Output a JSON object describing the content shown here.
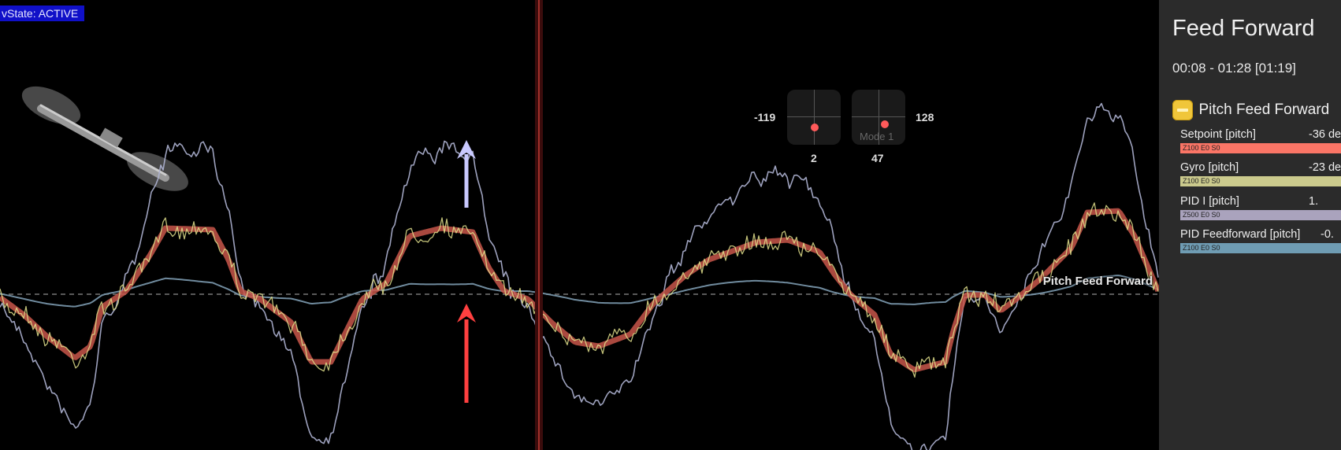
{
  "status_badge": "vState: ACTIVE",
  "series_overlay_label": "Pitch Feed Forward",
  "sticks": {
    "left": {
      "side_value": "-119",
      "bottom_value": "2"
    },
    "right": {
      "side_value": "128",
      "bottom_value": "47",
      "mode_label": "Mode 1"
    }
  },
  "side_panel": {
    "title": "Feed Forward",
    "time_range": "00:08 - 01:28 [01:19]",
    "group": {
      "label": "Pitch Feed Forward",
      "fields": [
        {
          "label": "Setpoint [pitch]",
          "value": "-36 de",
          "scale": "Z100 E0 S0",
          "color": "#fa7566"
        },
        {
          "label": "Gyro [pitch]",
          "value": "-23 de",
          "scale": "Z100 E0 S0",
          "color": "#cbca8d"
        },
        {
          "label": "PID I [pitch]",
          "value": "1.",
          "scale": "Z500 E0 S0",
          "color": "#aaa3bd"
        },
        {
          "label": "PID Feedforward [pitch]",
          "value": "-0.",
          "scale": "Z100 E0 S0",
          "color": "#6f9cb3"
        }
      ]
    }
  },
  "colors": {
    "plot_bg": "#000000",
    "setpoint_trace": "#c8564a",
    "gyro_trace": "#e2e08c",
    "pid_i_trace": "#aeb3d1",
    "feedforward_trace": "#7c9aaf",
    "cursor_line": "#a0302a",
    "arrow_up_light": "#c9c9ff",
    "arrow_up_red": "#ff4040",
    "badge_bg": "#1010c8",
    "panel_bg": "#2b2b2b",
    "group_icon": "#f0c63a"
  }
}
